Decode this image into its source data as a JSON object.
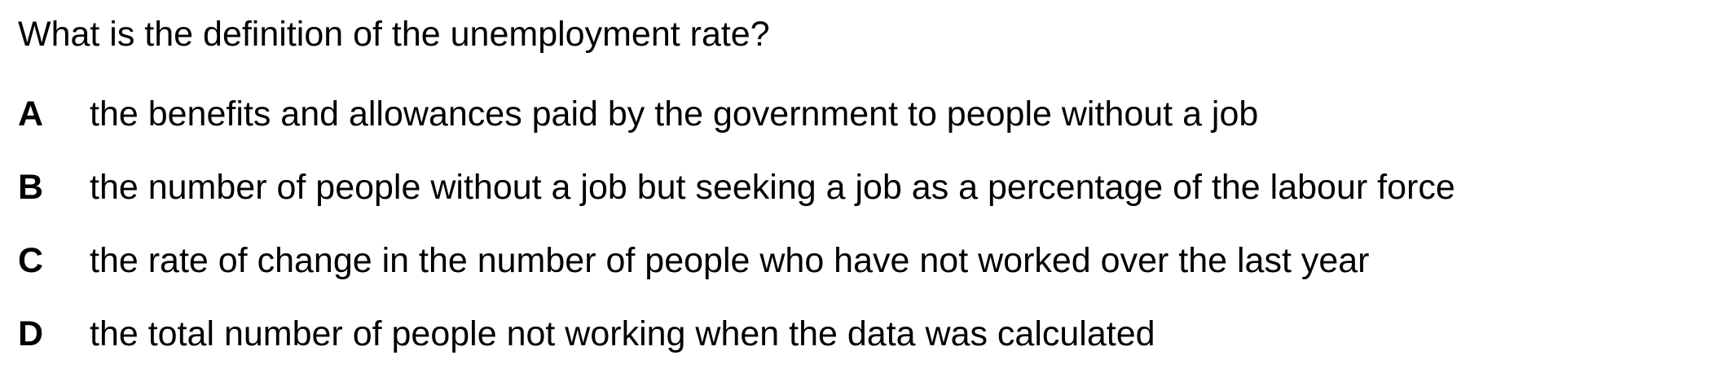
{
  "question": {
    "text": "What is the definition of the unemployment rate?"
  },
  "options": [
    {
      "letter": "A",
      "text": "the benefits and allowances paid by the government to people without a job"
    },
    {
      "letter": "B",
      "text": "the number of people without a job but seeking a job as a percentage of the labour force"
    },
    {
      "letter": "C",
      "text": "the rate of change in the number of people who have not worked over the last year"
    },
    {
      "letter": "D",
      "text": "the total number of people not working when the data was calculated"
    }
  ]
}
